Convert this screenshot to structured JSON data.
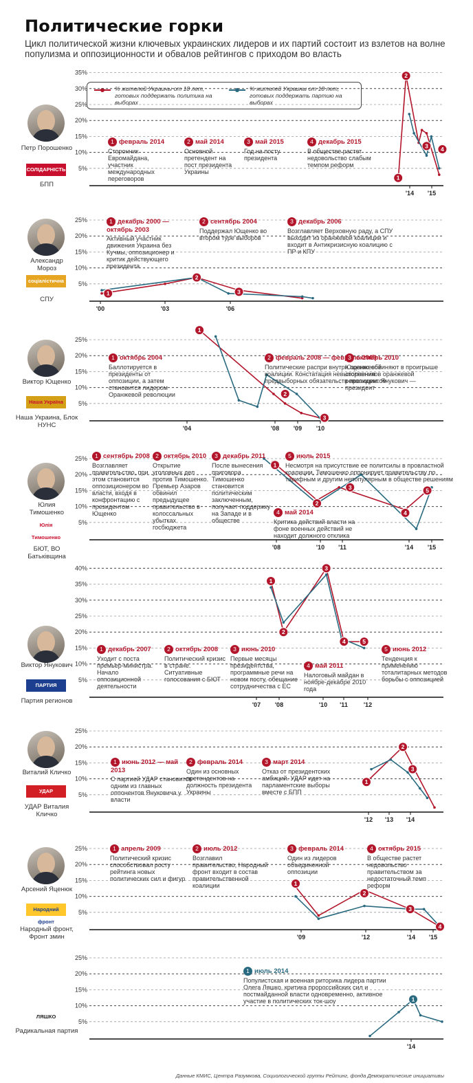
{
  "title": "Политические горки",
  "subtitle": "Цикл политической жизни ключевых украинских лидеров и их партий состоит из взлетов на волне популизма и оппозиционности и обвалов рейтингов с приходом во власть",
  "legend": {
    "politician": "% жителей Украины от 18 лет, готовых поддержать политика на выборах",
    "party": "% жителей Украины от 18 лет, готовых поддержать партию на выборах"
  },
  "colors": {
    "politician": "#b3162b",
    "party": "#2a6a80",
    "grid": "#555"
  },
  "source": "Данные КМИС, Центра Разумкова, Социологической группы Рейтинг, фонда Демократические инициативы",
  "chart_data": [
    {
      "type": "line",
      "name": "Петр Порошенко",
      "party": "БПП",
      "logo": "СОЛІДАРНІСТЬ",
      "yticks": [
        "5%",
        "10%",
        "15%",
        "20%",
        "25%",
        "30%",
        "35%"
      ],
      "xticks": [
        "'14",
        "'15"
      ],
      "series": [
        {
          "key": "politician",
          "x": [
            2014.1,
            2014.35,
            2014.75,
            2014.85,
            2015.0,
            2015.4
          ],
          "y": [
            1.5,
            34,
            13,
            17,
            16,
            3
          ]
        },
        {
          "key": "party",
          "x": [
            2014.45,
            2014.6,
            2015.0,
            2015.15,
            2015.4
          ],
          "y": [
            22,
            16,
            9,
            15,
            5
          ]
        }
      ],
      "markers": [
        {
          "n": "1",
          "x": 2014.1,
          "y": 2
        },
        {
          "n": "2",
          "x": 2014.35,
          "y": 34
        },
        {
          "n": "3",
          "x": 2015.0,
          "y": 12
        },
        {
          "n": "4",
          "x": 2015.5,
          "y": 11
        }
      ],
      "events": [
        {
          "n": "1",
          "head": "февраль 2014",
          "text": "Сторонник Евромайдана, участник международных переговоров"
        },
        {
          "n": "2",
          "head": "май 2014",
          "text": "Основной претендент на пост президента Украины"
        },
        {
          "n": "3",
          "head": "май 2015",
          "text": "Год на посту президента"
        },
        {
          "n": "4",
          "head": "декабрь 2015",
          "text": "В обществе растет недовольство слабым темпом реформ"
        }
      ]
    },
    {
      "type": "line",
      "name": "Александр Мороз",
      "party": "СПУ",
      "logo": "соціалістична партія",
      "yticks": [
        "5%",
        "10%",
        "15%",
        "20%",
        "25%"
      ],
      "xticks": [
        "'00",
        "'03",
        "'06"
      ],
      "series": [
        {
          "key": "politician",
          "x": [
            2000,
            2003,
            2004.5,
            2006.5,
            2009.5
          ],
          "y": [
            2,
            5,
            7,
            3,
            0.5
          ]
        },
        {
          "key": "party",
          "x": [
            2000,
            2004.5,
            2006.0,
            2009.5,
            2010.0
          ],
          "y": [
            3,
            7,
            2,
            1,
            0.5
          ]
        }
      ],
      "markers": [
        {
          "n": "1",
          "x": 2000.3,
          "y": 2
        },
        {
          "n": "2",
          "x": 2004.5,
          "y": 7
        },
        {
          "n": "3",
          "x": 2006.5,
          "y": 2.5
        }
      ],
      "events": [
        {
          "n": "1",
          "head": "декабрь 2000 — октябрь 2003",
          "text": "Активный участник движения Украина без Кучмы, оппозиционер и критик действующего президента"
        },
        {
          "n": "2",
          "head": "сентябрь 2004",
          "text": "Поддержал Ющенко во втором туре выборов"
        },
        {
          "n": "3",
          "head": "декабрь 2006",
          "text": "Возглавляет Верховную раду, а СПУ выходит из оранжевой коалиции и входит в Антикризисную коалицию с ПР и КПУ"
        }
      ]
    },
    {
      "type": "line",
      "name": "Виктор Ющенко",
      "party": "Наша Украина, Блок НУНС",
      "logo": "Наша Україна",
      "yticks": [
        "5%",
        "10%",
        "15%",
        "20%",
        "25%"
      ],
      "xticks": [
        "'04",
        "'08",
        "'09",
        "'10"
      ],
      "series": [
        {
          "key": "politician",
          "x": [
            2004.8,
            2008.0,
            2008.5,
            2009.2,
            2010.0
          ],
          "y": [
            28,
            8,
            5,
            2,
            0.5
          ]
        },
        {
          "key": "party",
          "x": [
            2005.5,
            2006.5,
            2007.3,
            2007.7,
            2009.0,
            2010.0
          ],
          "y": [
            26,
            6,
            4,
            14,
            8,
            0.5
          ]
        }
      ],
      "markers": [
        {
          "n": "1",
          "x": 2004.8,
          "y": 28
        },
        {
          "n": "2",
          "x": 2008.5,
          "y": 8
        },
        {
          "n": "3",
          "x": 2010.2,
          "y": 0.5
        }
      ],
      "events": [
        {
          "n": "1",
          "head": "октябрь 2004",
          "text": "Баллотируется в президенты от оппозиции, а затем становится лидером Оранжевой революции"
        },
        {
          "n": "2",
          "head": "февраль 2008 — февраль 2009",
          "text": "Политические распри внутри оранжевой коалиции. Констатация невыполнения предвыборных обязательств президентом"
        },
        {
          "n": "3",
          "head": "октябрь 2010",
          "text": "Ющенко обвиняют в проигрыше сторонников оранжевой революции. Янукович — президент"
        }
      ]
    },
    {
      "type": "line",
      "name": "Юлия Тимошенко",
      "party": "БЮТ, ВО Батьківщина",
      "logo": "Юлія Тимошенко",
      "yticks": [
        "5%",
        "10%",
        "15%",
        "20%",
        "25%"
      ],
      "xticks": [
        "'08",
        "'10",
        "'11",
        "'14",
        "'15"
      ],
      "series": [
        {
          "key": "politician",
          "x": [
            2008.0,
            2010.0,
            2011.0,
            2014.0,
            2015.0
          ],
          "y": [
            24,
            12,
            16,
            9,
            15
          ]
        },
        {
          "key": "party",
          "x": [
            2007.6,
            2010.0,
            2012.0,
            2014.5,
            2015.2
          ],
          "y": [
            25,
            11,
            20,
            3,
            16
          ]
        }
      ],
      "markers": [
        {
          "n": "1",
          "x": 2008.1,
          "y": 23
        },
        {
          "n": "2",
          "x": 2010.0,
          "y": 11
        },
        {
          "n": "3",
          "x": 2011.5,
          "y": 16
        },
        {
          "n": "4",
          "x": 2014.0,
          "y": 8
        },
        {
          "n": "5",
          "x": 2015.0,
          "y": 15
        }
      ],
      "events": [
        {
          "n": "1",
          "head": "сентябрь 2008",
          "text": "Возглавляет правительство, при этом становится оппозиционером во власти, входя в конфронтацию с президентом Ющенко"
        },
        {
          "n": "2",
          "head": "октябрь 2010",
          "text": "Открытие уголовных дел против Тимошенко. Премьер Азаров обвинил предыдущее правительство в колоссальных убытках госбюджета"
        },
        {
          "n": "3",
          "head": "декабрь 2011",
          "text": "После вынесения приговора Тимошенко становится политическим заключенным, получает поддержку на Западе и в обществе"
        },
        {
          "n": "4",
          "head": "май 2014",
          "text": "Критика действий власти на фоне военных действий не находит должного отклика"
        },
        {
          "n": "5",
          "head": "июль 2015",
          "text": "Несмотря на присутствие ее политсилы в провластной коалиции, Тимошенко оппонирует правительству по тарифным и другим непопулярным в обществе решениям"
        }
      ]
    },
    {
      "type": "line",
      "name": "Виктор Янукович",
      "party": "Партия регионов",
      "logo": "ПАРТИЯ РЕГИОНОВ",
      "yticks": [
        "5%",
        "10%",
        "15%",
        "20%",
        "25%",
        "30%",
        "35%",
        "40%"
      ],
      "xticks": [
        "'07",
        "'08",
        "'10",
        "'11",
        "'12"
      ],
      "series": [
        {
          "key": "politician",
          "x": [
            2007.8,
            2008.3,
            2010.0,
            2010.7,
            2011.5
          ],
          "y": [
            36,
            20,
            40,
            17,
            17
          ]
        },
        {
          "key": "party",
          "x": [
            2007.8,
            2008.3,
            2010.0,
            2010.6,
            2011.5
          ],
          "y": [
            34,
            23,
            38,
            18,
            15
          ]
        }
      ],
      "markers": [
        {
          "n": "1",
          "x": 2007.8,
          "y": 36
        },
        {
          "n": "2",
          "x": 2008.3,
          "y": 20
        },
        {
          "n": "3",
          "x": 2010.0,
          "y": 40
        },
        {
          "n": "4",
          "x": 2010.7,
          "y": 17
        },
        {
          "n": "5",
          "x": 2011.5,
          "y": 17
        }
      ],
      "events": [
        {
          "n": "1",
          "head": "декабрь 2007",
          "text": "Уходит с поста премьер-министра. Начало оппозиционной деятельности"
        },
        {
          "n": "2",
          "head": "октябрь 2008",
          "text": "Политический кризис в стране. Ситуативные голосования с БЮТ"
        },
        {
          "n": "3",
          "head": "июнь 2010",
          "text": "Первые месяцы президентства, программные речи на новом посту, обещание сотрудничества с ЕС"
        },
        {
          "n": "4",
          "head": "май 2011",
          "text": "Налоговый майдан в ноябре-декабре 2010 года"
        },
        {
          "n": "5",
          "head": "июнь 2012",
          "text": "Тенденция к применению тоталитарных методов борьбы с оппозицией"
        }
      ]
    },
    {
      "type": "line",
      "name": "Виталий Кличко",
      "party": "УДАР Виталия Кличко",
      "logo": "УДАР",
      "yticks": [
        "5%",
        "10%",
        "15%",
        "20%",
        "25%"
      ],
      "xticks": [
        "'12",
        "'13",
        "'14"
      ],
      "series": [
        {
          "key": "politician",
          "x": [
            2012.0,
            2013.5,
            2013.9,
            2014.8
          ],
          "y": [
            9,
            20,
            14,
            1
          ]
        },
        {
          "key": "party",
          "x": [
            2012.2,
            2013.0,
            2013.7,
            2014.2,
            2014.5
          ],
          "y": [
            13,
            16,
            12,
            7,
            4
          ]
        }
      ],
      "markers": [
        {
          "n": "1",
          "x": 2012.0,
          "y": 9
        },
        {
          "n": "2",
          "x": 2013.5,
          "y": 20
        },
        {
          "n": "3",
          "x": 2013.9,
          "y": 13
        }
      ],
      "events": [
        {
          "n": "1",
          "head": "июнь 2012 — май 2013",
          "text": "С партией УДАР становится одним из главных оппонентов Януковича у власти"
        },
        {
          "n": "2",
          "head": "февраль 2014",
          "text": "Один из основных претендентов на должность президента Украины"
        },
        {
          "n": "3",
          "head": "март 2014",
          "text": "Отказ от президентских амбиций. УДАР идет на парламентские выборы вместе с БПП"
        }
      ]
    },
    {
      "type": "line",
      "name": "Арсений Яценюк",
      "party": "Народный фронт, Фронт змин",
      "logo": "Народний фронт",
      "yticks": [
        "5%",
        "10%",
        "15%",
        "20%",
        "25%"
      ],
      "xticks": [
        "'09",
        "'12",
        "'14",
        "'15"
      ],
      "series": [
        {
          "key": "politician",
          "x": [
            2009.0,
            2010.0,
            2012.0,
            2014.0,
            2015.3
          ],
          "y": [
            13,
            4,
            12,
            6,
            0.5
          ]
        },
        {
          "key": "party",
          "x": [
            2009.0,
            2010.0,
            2012.0,
            2014.0,
            2014.6,
            2015.3
          ],
          "y": [
            10,
            3,
            7,
            6,
            6,
            0.5
          ]
        }
      ],
      "markers": [
        {
          "n": "1",
          "x": 2009.0,
          "y": 14
        },
        {
          "n": "2",
          "x": 2012.0,
          "y": 11
        },
        {
          "n": "3",
          "x": 2014.0,
          "y": 6
        },
        {
          "n": "4",
          "x": 2015.3,
          "y": 0.5
        }
      ],
      "events": [
        {
          "n": "1",
          "head": "апрель 2009",
          "text": "Политический кризис способствовал росту рейтинга новых политических сил и фигур"
        },
        {
          "n": "2",
          "head": "июль 2012",
          "text": "Возглавил правительство, Народный фронт входит в состав правительственной коалиции"
        },
        {
          "n": "3",
          "head": "февраль 2014",
          "text": "Один из лидеров объединенной оппозиции"
        },
        {
          "n": "4",
          "head": "октябрь 2015",
          "text": "В обществе растет недовольство правительством за недостаточный темп реформ"
        }
      ]
    },
    {
      "type": "line",
      "name": "",
      "party": "Радикальная партия",
      "logo": "ЛЯШКО",
      "yticks": [
        "5%",
        "10%",
        "15%",
        "20%",
        "25%"
      ],
      "xticks": [
        "'14"
      ],
      "series": [
        {
          "key": "party",
          "x": [
            2013.9,
            2014.3,
            2014.5,
            2014.6,
            2014.9
          ],
          "y": [
            0.5,
            8,
            12,
            7,
            5
          ]
        }
      ],
      "markers": [
        {
          "n": "1",
          "x": 2014.5,
          "y": 12,
          "blue": true
        }
      ],
      "events": [
        {
          "n": "1",
          "head": "июль 2014",
          "text": "Популистская и военная риторика лидера партии Олега Ляшко, критика пророссийских сил и постмайданной власти одновременно, активное участие в политических ток-шоу",
          "blue": true
        }
      ]
    }
  ]
}
